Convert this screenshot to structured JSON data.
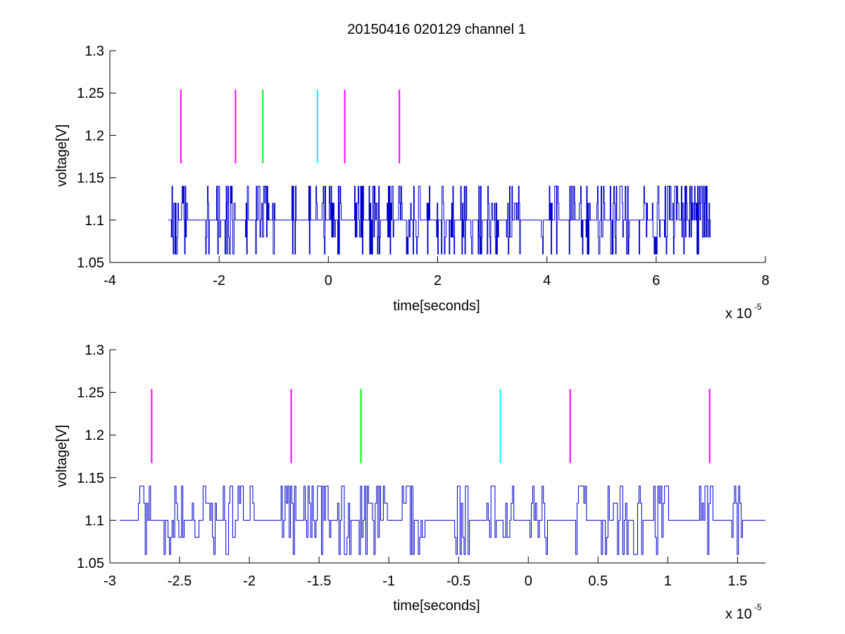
{
  "figure": {
    "title": "20150416 020129 channel 1"
  },
  "colors": {
    "signal": "#0000cc",
    "magenta": "#ff00ff",
    "green": "#00ff00",
    "cyan": "#00ffff",
    "axis": "#000000"
  },
  "chart_data": [
    {
      "type": "line",
      "title": "20150416 020129 channel 1",
      "xlabel": "time[seconds]",
      "ylabel": "voltage[V]",
      "x_multiplier": "x 10",
      "x_multiplier_exponent": "-5",
      "xlim": [
        -4,
        8
      ],
      "ylim": [
        1.05,
        1.3
      ],
      "x_ticks": [
        -4,
        -2,
        0,
        2,
        4,
        6,
        8
      ],
      "x_tick_labels": [
        "-4",
        "-2",
        "0",
        "2",
        "4",
        "6",
        "8"
      ],
      "y_ticks": [
        1.05,
        1.1,
        1.15,
        1.2,
        1.25,
        1.3
      ],
      "y_tick_labels": [
        "1.05",
        "1.1",
        "1.15",
        "1.2",
        "1.25",
        "1.3"
      ],
      "grid": false,
      "box": "open",
      "trace": {
        "x_start": -2.93,
        "x_end": 7.0,
        "levels": [
          1.06,
          1.08,
          1.1,
          1.12,
          1.14
        ],
        "baseline": 1.1,
        "pattern": "dense random telegraph noise between 1.06 and 1.14 V around a 1.10 V baseline"
      },
      "markers": [
        {
          "x": -2.7,
          "y_from": 1.167,
          "y_to": 1.254,
          "color": "magenta"
        },
        {
          "x": -1.7,
          "y_from": 1.167,
          "y_to": 1.254,
          "color": "magenta"
        },
        {
          "x": -1.2,
          "y_from": 1.167,
          "y_to": 1.254,
          "color": "green"
        },
        {
          "x": -0.2,
          "y_from": 1.167,
          "y_to": 1.254,
          "color": "cyan"
        },
        {
          "x": 0.3,
          "y_from": 1.167,
          "y_to": 1.254,
          "color": "magenta"
        },
        {
          "x": 1.3,
          "y_from": 1.167,
          "y_to": 1.254,
          "color": "magenta"
        }
      ]
    },
    {
      "type": "line",
      "title": "",
      "xlabel": "time[seconds]",
      "ylabel": "voltage[V]",
      "x_multiplier": "x 10",
      "x_multiplier_exponent": "-5",
      "xlim": [
        -3.0,
        1.7
      ],
      "ylim": [
        1.05,
        1.3
      ],
      "x_ticks": [
        -3,
        -2.5,
        -2,
        -1.5,
        -1,
        -0.5,
        0,
        0.5,
        1,
        1.5
      ],
      "x_tick_labels": [
        "-3",
        "-2.5",
        "-2",
        "-1.5",
        "-1",
        "-0.5",
        "0",
        "0.5",
        "1",
        "1.5"
      ],
      "y_ticks": [
        1.05,
        1.1,
        1.15,
        1.2,
        1.25,
        1.3
      ],
      "y_tick_labels": [
        "1.05",
        "1.1",
        "1.15",
        "1.2",
        "1.25",
        "1.3"
      ],
      "grid": false,
      "box": "open",
      "trace": {
        "x_start": -2.93,
        "x_end": 1.7,
        "levels": [
          1.06,
          1.08,
          1.1,
          1.12,
          1.14
        ],
        "baseline": 1.1,
        "pattern": "random telegraph noise between 1.06 and 1.14 V around a 1.10 V baseline"
      },
      "markers": [
        {
          "x": -2.7,
          "y_from": 1.167,
          "y_to": 1.254,
          "color": "magenta"
        },
        {
          "x": -1.7,
          "y_from": 1.167,
          "y_to": 1.254,
          "color": "magenta"
        },
        {
          "x": -1.2,
          "y_from": 1.167,
          "y_to": 1.254,
          "color": "green"
        },
        {
          "x": -0.2,
          "y_from": 1.167,
          "y_to": 1.254,
          "color": "cyan"
        },
        {
          "x": 0.3,
          "y_from": 1.167,
          "y_to": 1.254,
          "color": "magenta"
        },
        {
          "x": 1.3,
          "y_from": 1.167,
          "y_to": 1.254,
          "color": "magenta"
        }
      ]
    }
  ]
}
